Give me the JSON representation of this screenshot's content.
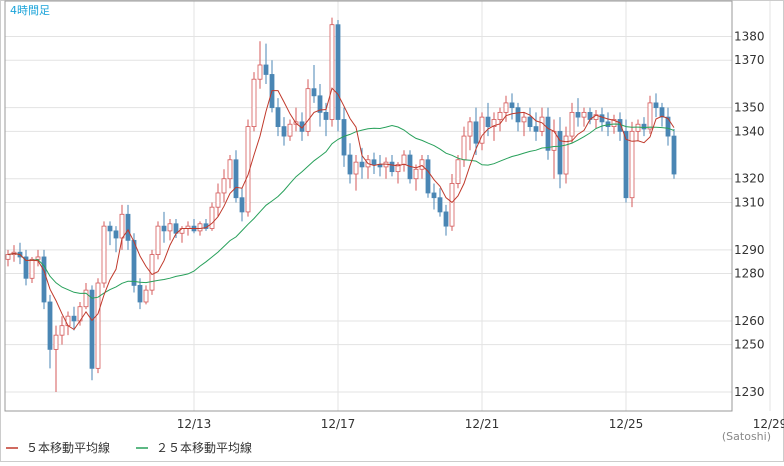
{
  "header": {
    "period_label": "4時間足"
  },
  "footer": {
    "credit": "(Satoshi)",
    "legend": [
      {
        "label": "５本移動平均線",
        "color": "#c0392b"
      },
      {
        "label": "２５本移動平均線",
        "color": "#27a05a"
      }
    ]
  },
  "colors": {
    "up_candle": "#ffffff",
    "up_wick": "#d45a5a",
    "down_candle": "#4a86b4",
    "down_wick": "#4a86b4",
    "ma5": "#c0392b",
    "ma25": "#27a05a",
    "grid": "#e3e3e3",
    "border": "#999999"
  },
  "chart_data": {
    "type": "candlestick",
    "title": "",
    "xlabel": "",
    "ylabel": "",
    "ylim": [
      1222,
      1395
    ],
    "y_ticks": [
      1230,
      1250,
      1260,
      1280,
      1290,
      1310,
      1320,
      1340,
      1350,
      1370,
      1380
    ],
    "x_ticks": [
      {
        "label": "12/13",
        "index": 31
      },
      {
        "label": "12/17",
        "index": 55
      },
      {
        "label": "12/21",
        "index": 79
      },
      {
        "label": "12/25",
        "index": 103
      },
      {
        "label": "12/29",
        "index": 127
      }
    ],
    "grid": true,
    "legend_position": "bottom-left",
    "series": [
      {
        "name": "５本移動平均線",
        "type": "line",
        "window": 5
      },
      {
        "name": "２５本移動平均線",
        "type": "line",
        "window": 25
      }
    ],
    "candles": [
      [
        1286,
        1290,
        1283,
        1288
      ],
      [
        1288,
        1292,
        1285,
        1289
      ],
      [
        1289,
        1293,
        1284,
        1287
      ],
      [
        1287,
        1290,
        1275,
        1278
      ],
      [
        1278,
        1287,
        1276,
        1286
      ],
      [
        1286,
        1290,
        1283,
        1287
      ],
      [
        1287,
        1290,
        1265,
        1268
      ],
      [
        1268,
        1271,
        1240,
        1248
      ],
      [
        1248,
        1258,
        1230,
        1254
      ],
      [
        1254,
        1262,
        1250,
        1258
      ],
      [
        1258,
        1264,
        1254,
        1262
      ],
      [
        1262,
        1266,
        1256,
        1260
      ],
      [
        1260,
        1268,
        1258,
        1266
      ],
      [
        1266,
        1276,
        1265,
        1273
      ],
      [
        1273,
        1275,
        1235,
        1240
      ],
      [
        1240,
        1278,
        1238,
        1276
      ],
      [
        1276,
        1302,
        1274,
        1300
      ],
      [
        1300,
        1302,
        1292,
        1298
      ],
      [
        1298,
        1300,
        1289,
        1295
      ],
      [
        1295,
        1309,
        1290,
        1305
      ],
      [
        1305,
        1309,
        1290,
        1294
      ],
      [
        1294,
        1297,
        1272,
        1275
      ],
      [
        1275,
        1278,
        1265,
        1268
      ],
      [
        1268,
        1275,
        1267,
        1273
      ],
      [
        1273,
        1290,
        1271,
        1288
      ],
      [
        1288,
        1302,
        1286,
        1300
      ],
      [
        1300,
        1306,
        1293,
        1298
      ],
      [
        1298,
        1303,
        1294,
        1301
      ],
      [
        1301,
        1303,
        1295,
        1297
      ],
      [
        1297,
        1300,
        1293,
        1299
      ],
      [
        1299,
        1302,
        1296,
        1300
      ],
      [
        1300,
        1303,
        1297,
        1298
      ],
      [
        1298,
        1302,
        1296,
        1301
      ],
      [
        1301,
        1303,
        1298,
        1299
      ],
      [
        1299,
        1310,
        1298,
        1308
      ],
      [
        1308,
        1318,
        1304,
        1314
      ],
      [
        1314,
        1324,
        1310,
        1320
      ],
      [
        1320,
        1330,
        1316,
        1328
      ],
      [
        1328,
        1332,
        1310,
        1312
      ],
      [
        1312,
        1316,
        1302,
        1306
      ],
      [
        1306,
        1345,
        1304,
        1342
      ],
      [
        1342,
        1365,
        1340,
        1362
      ],
      [
        1362,
        1378,
        1358,
        1368
      ],
      [
        1368,
        1377,
        1360,
        1364
      ],
      [
        1364,
        1370,
        1348,
        1350
      ],
      [
        1350,
        1354,
        1338,
        1342
      ],
      [
        1342,
        1346,
        1334,
        1338
      ],
      [
        1338,
        1345,
        1336,
        1343
      ],
      [
        1343,
        1350,
        1340,
        1344
      ],
      [
        1344,
        1348,
        1336,
        1340
      ],
      [
        1340,
        1362,
        1338,
        1358
      ],
      [
        1358,
        1368,
        1352,
        1355
      ],
      [
        1355,
        1360,
        1342,
        1348
      ],
      [
        1348,
        1352,
        1338,
        1345
      ],
      [
        1345,
        1388,
        1342,
        1385
      ],
      [
        1385,
        1387,
        1340,
        1345
      ],
      [
        1345,
        1350,
        1325,
        1330
      ],
      [
        1330,
        1335,
        1318,
        1322
      ],
      [
        1322,
        1330,
        1315,
        1327
      ],
      [
        1327,
        1333,
        1320,
        1325
      ],
      [
        1325,
        1330,
        1320,
        1328
      ],
      [
        1328,
        1331,
        1322,
        1326
      ],
      [
        1326,
        1330,
        1321,
        1325
      ],
      [
        1325,
        1329,
        1320,
        1327
      ],
      [
        1327,
        1330,
        1321,
        1323
      ],
      [
        1323,
        1327,
        1318,
        1326
      ],
      [
        1326,
        1332,
        1323,
        1330
      ],
      [
        1330,
        1332,
        1318,
        1320
      ],
      [
        1320,
        1326,
        1315,
        1324
      ],
      [
        1324,
        1330,
        1320,
        1328
      ],
      [
        1328,
        1330,
        1312,
        1314
      ],
      [
        1314,
        1318,
        1307,
        1312
      ],
      [
        1312,
        1316,
        1304,
        1306
      ],
      [
        1306,
        1309,
        1296,
        1300
      ],
      [
        1300,
        1322,
        1298,
        1318
      ],
      [
        1318,
        1330,
        1316,
        1328
      ],
      [
        1328,
        1342,
        1325,
        1338
      ],
      [
        1338,
        1346,
        1332,
        1344
      ],
      [
        1344,
        1350,
        1330,
        1335
      ],
      [
        1335,
        1348,
        1332,
        1346
      ],
      [
        1346,
        1352,
        1338,
        1342
      ],
      [
        1342,
        1348,
        1336,
        1345
      ],
      [
        1345,
        1350,
        1340,
        1348
      ],
      [
        1348,
        1355,
        1344,
        1352
      ],
      [
        1352,
        1356,
        1345,
        1350
      ],
      [
        1350,
        1352,
        1340,
        1344
      ],
      [
        1344,
        1348,
        1338,
        1346
      ],
      [
        1346,
        1350,
        1340,
        1342
      ],
      [
        1342,
        1348,
        1336,
        1340
      ],
      [
        1340,
        1350,
        1338,
        1346
      ],
      [
        1346,
        1350,
        1328,
        1332
      ],
      [
        1332,
        1345,
        1320,
        1340
      ],
      [
        1340,
        1346,
        1316,
        1322
      ],
      [
        1322,
        1342,
        1318,
        1338
      ],
      [
        1338,
        1352,
        1335,
        1348
      ],
      [
        1348,
        1354,
        1342,
        1346
      ],
      [
        1346,
        1350,
        1342,
        1348
      ],
      [
        1348,
        1350,
        1343,
        1345
      ],
      [
        1345,
        1349,
        1341,
        1347
      ],
      [
        1347,
        1350,
        1340,
        1344
      ],
      [
        1344,
        1348,
        1338,
        1342
      ],
      [
        1342,
        1347,
        1339,
        1345
      ],
      [
        1345,
        1348,
        1336,
        1340
      ],
      [
        1340,
        1345,
        1310,
        1312
      ],
      [
        1312,
        1344,
        1308,
        1340
      ],
      [
        1340,
        1345,
        1336,
        1343
      ],
      [
        1343,
        1346,
        1338,
        1341
      ],
      [
        1341,
        1355,
        1339,
        1352
      ],
      [
        1352,
        1356,
        1346,
        1350
      ],
      [
        1350,
        1352,
        1342,
        1346
      ],
      [
        1346,
        1350,
        1334,
        1338
      ],
      [
        1338,
        1341,
        1320,
        1322
      ]
    ]
  }
}
